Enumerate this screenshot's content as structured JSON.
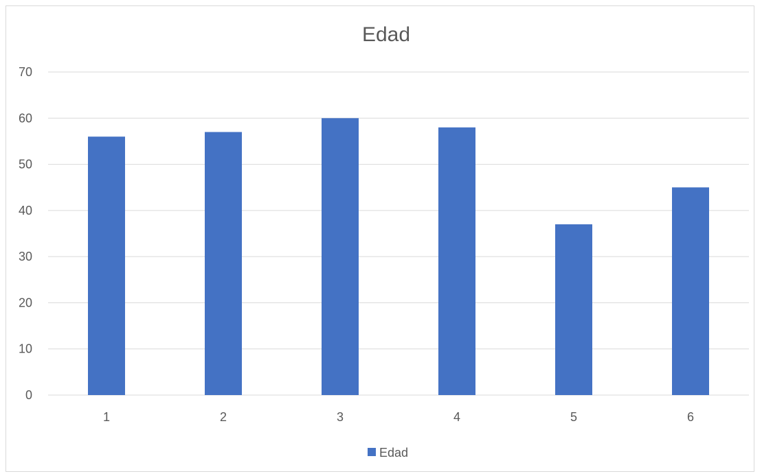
{
  "chart_data": {
    "type": "bar",
    "title": "Edad",
    "xlabel": "",
    "ylabel": "",
    "categories": [
      "1",
      "2",
      "3",
      "4",
      "5",
      "6"
    ],
    "series": [
      {
        "name": "Edad",
        "values": [
          56,
          57,
          60,
          58,
          37,
          45
        ],
        "color": "#4472c4"
      }
    ],
    "ylim": [
      0,
      70
    ],
    "yticks": [
      0,
      10,
      20,
      30,
      40,
      50,
      60,
      70
    ],
    "grid": true,
    "legend_position": "bottom"
  }
}
